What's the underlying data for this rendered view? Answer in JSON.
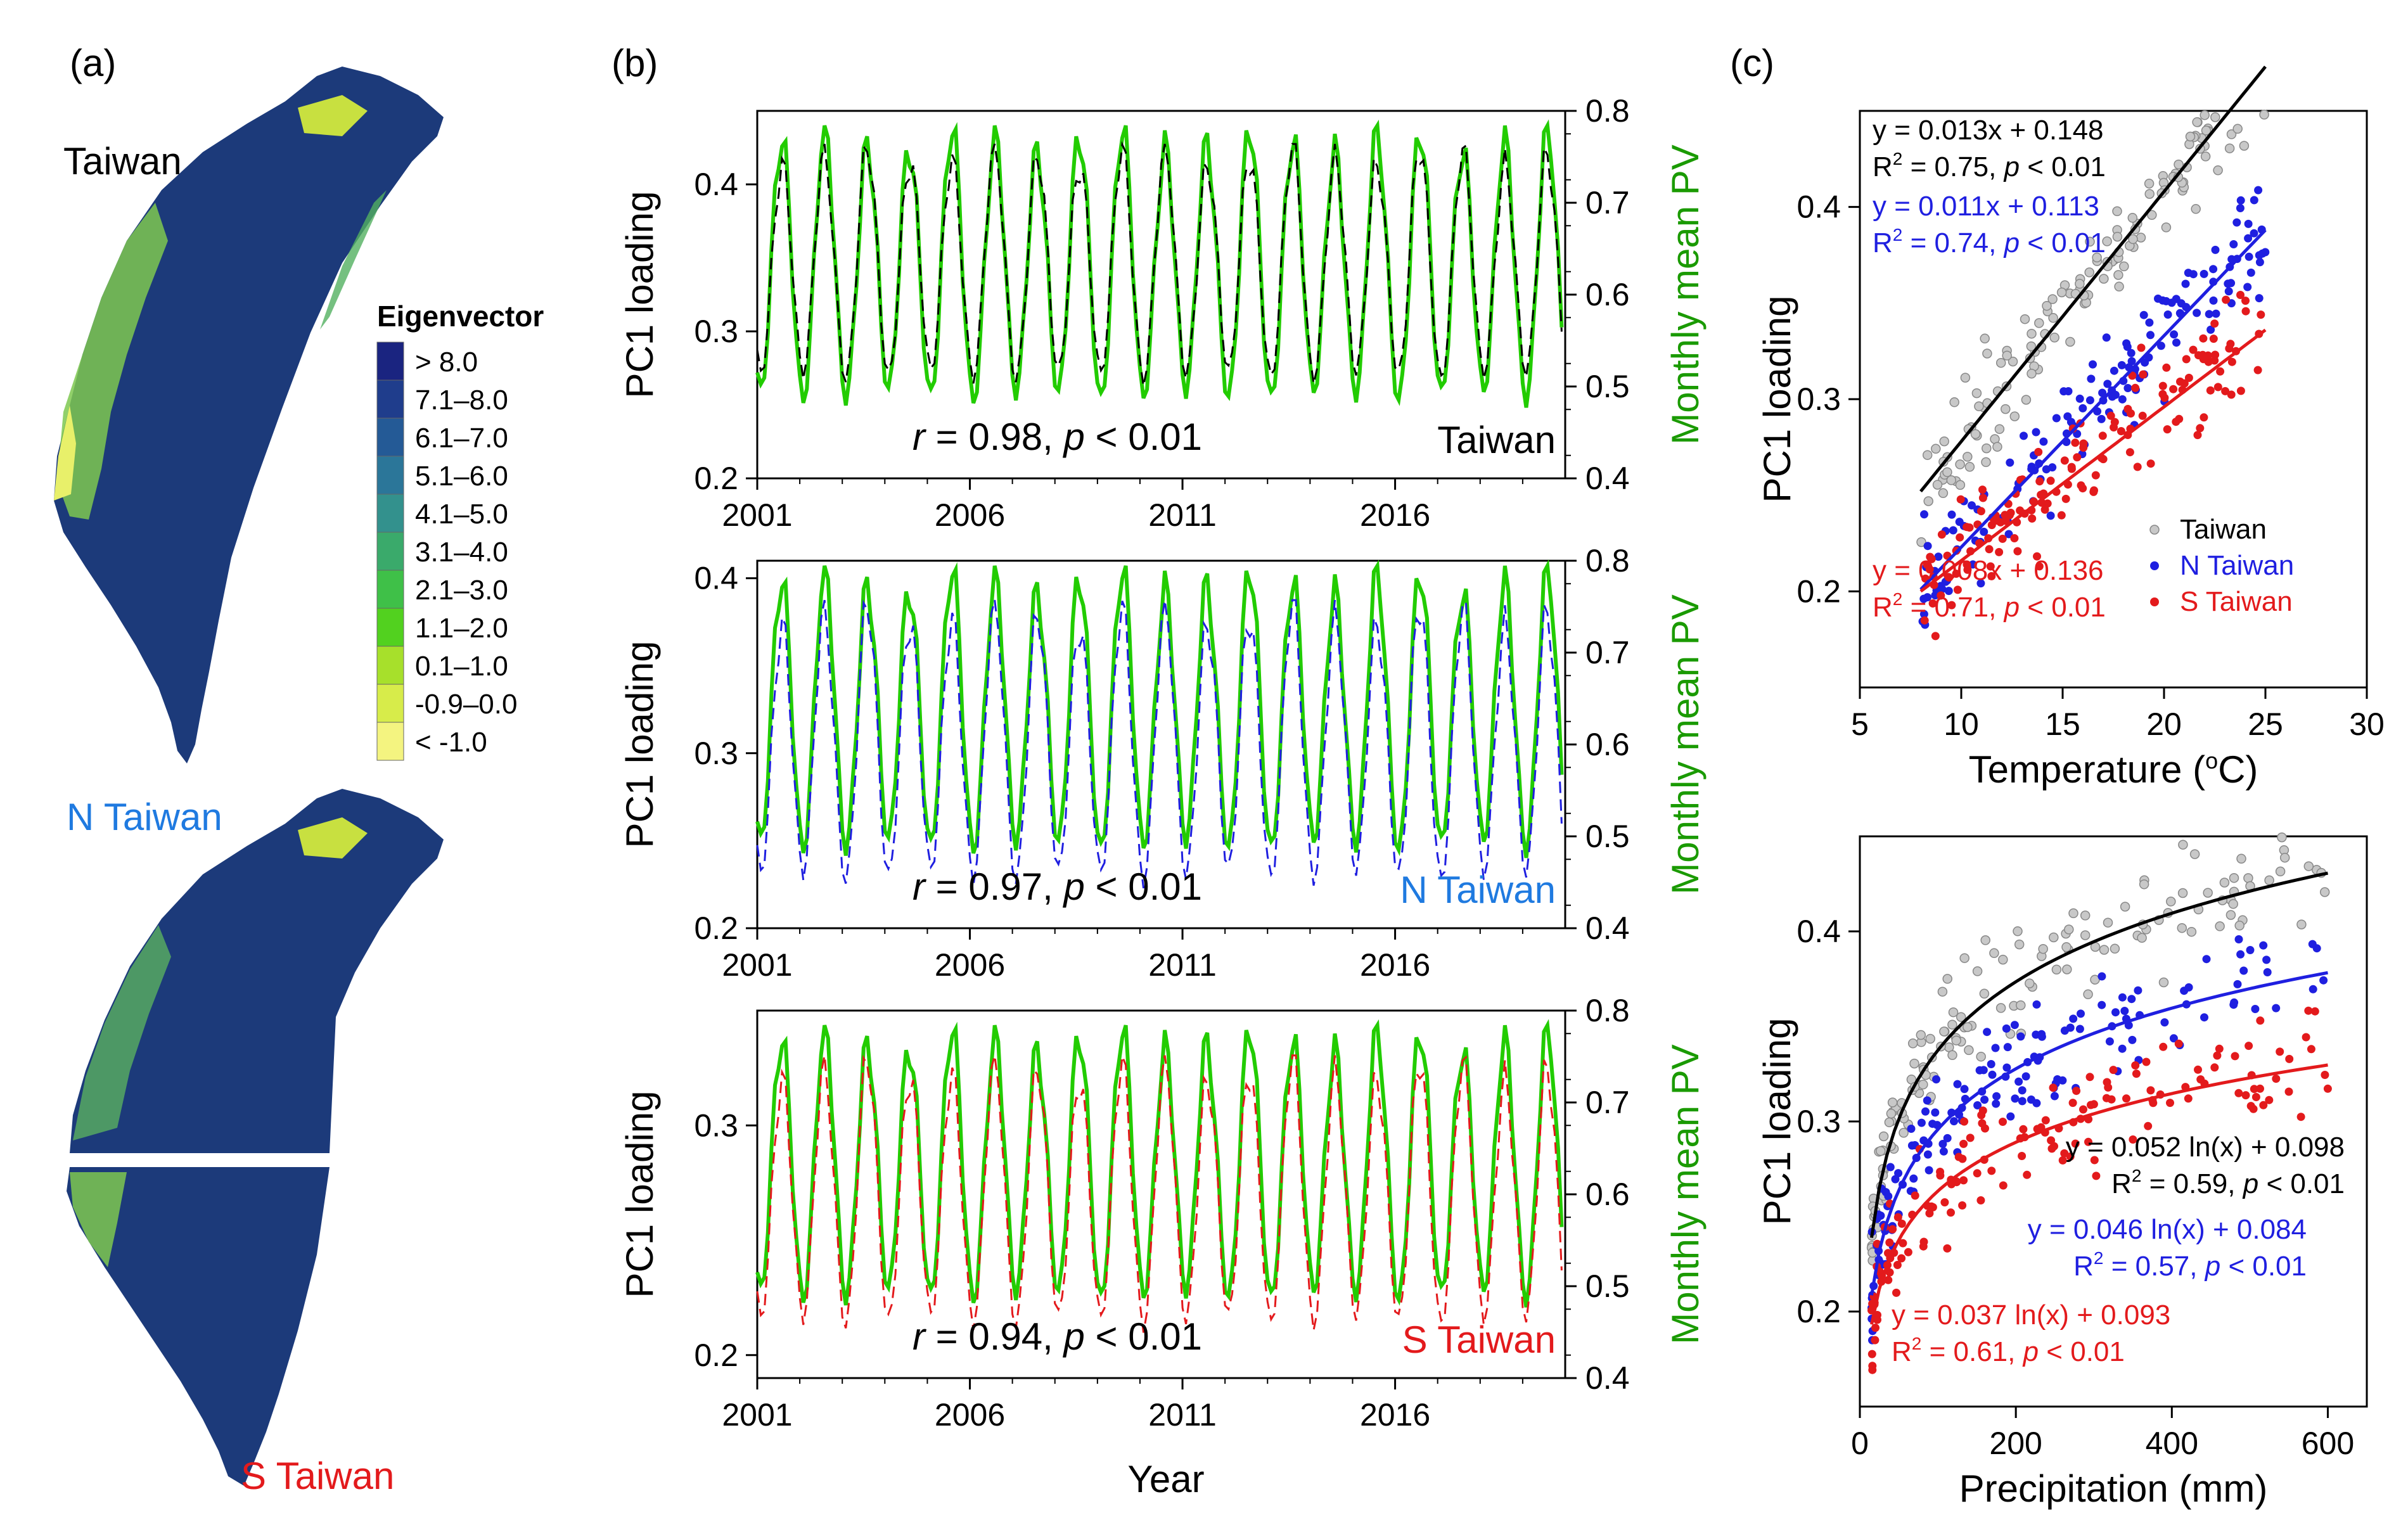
{
  "figure": {
    "panel_labels": [
      "(a)",
      "(b)",
      "(c)"
    ],
    "colors": {
      "taiwan": "#000000",
      "n_taiwan": "#1f1fe0",
      "s_taiwan": "#e31a1c",
      "pv_line": "#22cc00",
      "pv_axis": "#1a9a00",
      "grey_points": "#a9a9a9"
    }
  },
  "maps": {
    "labels": {
      "taiwan": "Taiwan",
      "n_taiwan": "N Taiwan",
      "s_taiwan": "S Taiwan"
    },
    "legend_title": "Eigenvector",
    "legend": [
      {
        "label": "> 8.0",
        "color": "#1a2480"
      },
      {
        "label": "7.1–8.0",
        "color": "#1f3d8c"
      },
      {
        "label": "6.1–7.0",
        "color": "#245a96"
      },
      {
        "label": "5.1–6.0",
        "color": "#2b7699"
      },
      {
        "label": "4.1–5.0",
        "color": "#33918d"
      },
      {
        "label": "3.1–4.0",
        "color": "#3aaa6b"
      },
      {
        "label": "2.1–3.0",
        "color": "#3fc048"
      },
      {
        "label": "1.1–2.0",
        "color": "#52d11f"
      },
      {
        "label": "0.1–1.0",
        "color": "#a7e02b"
      },
      {
        "label": "-0.9–0.0",
        "color": "#d7ec4a"
      },
      {
        "label": "< -1.0",
        "color": "#f4f480"
      }
    ]
  },
  "chart_data": [
    {
      "type": "line",
      "panel": "b-top",
      "region": "Taiwan",
      "xlabel": "",
      "ylabel": "PC1 loading",
      "ylabel2": "Monthly mean PV",
      "xlim": [
        2001,
        2020
      ],
      "ylim": [
        0.2,
        0.45
      ],
      "y2lim": [
        0.4,
        0.8
      ],
      "xticks": [
        "2001",
        "2006",
        "2011",
        "2016"
      ],
      "yticks": [
        "0.2",
        "0.3",
        "0.4"
      ],
      "y2ticks": [
        "0.4",
        "0.5",
        "0.6",
        "0.7",
        "0.8"
      ],
      "series": [
        {
          "name": "PC1 loading",
          "axis": "left",
          "style": "dashed",
          "trough": 0.27,
          "peak": 0.42
        },
        {
          "name": "Monthly mean PV",
          "axis": "right",
          "style": "solid",
          "trough": 0.49,
          "peak": 0.77
        }
      ],
      "stat_prefix": "r",
      "stat_rest": " = 0.98, ",
      "stat_p": "p",
      "stat_tail": " < 0.01",
      "region_label": "Taiwan"
    },
    {
      "type": "line",
      "panel": "b-mid",
      "region": "N Taiwan",
      "xlabel": "",
      "ylabel": "PC1 loading",
      "ylabel2": "Monthly mean PV",
      "xlim": [
        2001,
        2020
      ],
      "ylim": [
        0.2,
        0.41
      ],
      "y2lim": [
        0.4,
        0.8
      ],
      "xticks": [
        "2001",
        "2006",
        "2011",
        "2016"
      ],
      "yticks": [
        "0.2",
        "0.3",
        "0.4"
      ],
      "y2ticks": [
        "0.4",
        "0.5",
        "0.6",
        "0.7",
        "0.8"
      ],
      "series": [
        {
          "name": "PC1 loading",
          "axis": "left",
          "style": "dashed",
          "trough": 0.23,
          "peak": 0.38
        },
        {
          "name": "Monthly mean PV",
          "axis": "right",
          "style": "solid",
          "trough": 0.49,
          "peak": 0.78
        }
      ],
      "stat_prefix": "r",
      "stat_rest": " = 0.97, ",
      "stat_p": "p",
      "stat_tail": " < 0.01",
      "region_label": "N Taiwan"
    },
    {
      "type": "line",
      "panel": "b-bot",
      "region": "S Taiwan",
      "xlabel": "Year",
      "ylabel": "PC1 loading",
      "ylabel2": "Monthly mean PV",
      "xlim": [
        2001,
        2020
      ],
      "ylim": [
        0.19,
        0.35
      ],
      "y2lim": [
        0.4,
        0.8
      ],
      "xticks": [
        "2001",
        "2006",
        "2011",
        "2016"
      ],
      "yticks": [
        "0.2",
        "0.3"
      ],
      "y2ticks": [
        "0.4",
        "0.5",
        "0.6",
        "0.7",
        "0.8"
      ],
      "series": [
        {
          "name": "PC1 loading",
          "axis": "left",
          "style": "dashed",
          "trough": 0.215,
          "peak": 0.325
        },
        {
          "name": "Monthly mean PV",
          "axis": "right",
          "style": "solid",
          "trough": 0.49,
          "peak": 0.77
        }
      ],
      "stat_prefix": "r",
      "stat_rest": " = 0.94, ",
      "stat_p": "p",
      "stat_tail": " < 0.01",
      "region_label": "S Taiwan"
    },
    {
      "type": "scatter",
      "panel": "c-top",
      "xlabel": "Temperature (°C)",
      "ylabel": "PC1 loading",
      "xlim": [
        5,
        30
      ],
      "ylim": [
        0.15,
        0.45
      ],
      "xticks": [
        "5",
        "10",
        "15",
        "20",
        "25",
        "30"
      ],
      "yticks": [
        "0.2",
        "0.3",
        "0.4"
      ],
      "series": [
        {
          "name": "Taiwan",
          "fit": "linear",
          "a": 0.013,
          "b": 0.148,
          "x_range": [
            8,
            25
          ],
          "equation": "y = 0.013x + 0.148",
          "r2": "R",
          "r2_rest": " = 0.75, ",
          "p": "p",
          "p_rest": " < 0.01"
        },
        {
          "name": "N Taiwan",
          "fit": "linear",
          "a": 0.011,
          "b": 0.113,
          "x_range": [
            8,
            25
          ],
          "equation": "y = 0.011x + 0.113",
          "r2": "R",
          "r2_rest": " = 0.74, ",
          "p": "p",
          "p_rest": " < 0.01"
        },
        {
          "name": "S Taiwan",
          "fit": "linear",
          "a": 0.008,
          "b": 0.136,
          "x_range": [
            8,
            25
          ],
          "equation": "y = 0.008x + 0.136",
          "r2": "R",
          "r2_rest": " = 0.71, ",
          "p": "p",
          "p_rest": " < 0.01"
        }
      ],
      "legend": [
        "Taiwan",
        "N Taiwan",
        "S Taiwan"
      ]
    },
    {
      "type": "scatter",
      "panel": "c-bot",
      "xlabel": "Precipitation (mm)",
      "ylabel": "PC1 loading",
      "xlim": [
        0,
        650
      ],
      "ylim": [
        0.15,
        0.45
      ],
      "xticks": [
        "0",
        "200",
        "400",
        "600"
      ],
      "yticks": [
        "0.2",
        "0.3",
        "0.4"
      ],
      "series": [
        {
          "name": "Taiwan",
          "fit": "log",
          "a": 0.052,
          "b": 0.098,
          "x_range": [
            15,
            600
          ],
          "equation": "y = 0.052 ln(x) + 0.098",
          "r2": "R",
          "r2_rest": " = 0.59, ",
          "p": "p",
          "p_rest": " < 0.01"
        },
        {
          "name": "N Taiwan",
          "fit": "log",
          "a": 0.046,
          "b": 0.084,
          "x_range": [
            15,
            600
          ],
          "equation": "y = 0.046 ln(x) + 0.084",
          "r2": "R",
          "r2_rest": " = 0.57, ",
          "p": "p",
          "p_rest": " < 0.01"
        },
        {
          "name": "S Taiwan",
          "fit": "log",
          "a": 0.037,
          "b": 0.093,
          "x_range": [
            15,
            600
          ],
          "equation": "y = 0.037 ln(x) + 0.093",
          "r2": "R",
          "r2_rest": " = 0.61, ",
          "p": "p",
          "p_rest": " < 0.01"
        }
      ]
    }
  ]
}
